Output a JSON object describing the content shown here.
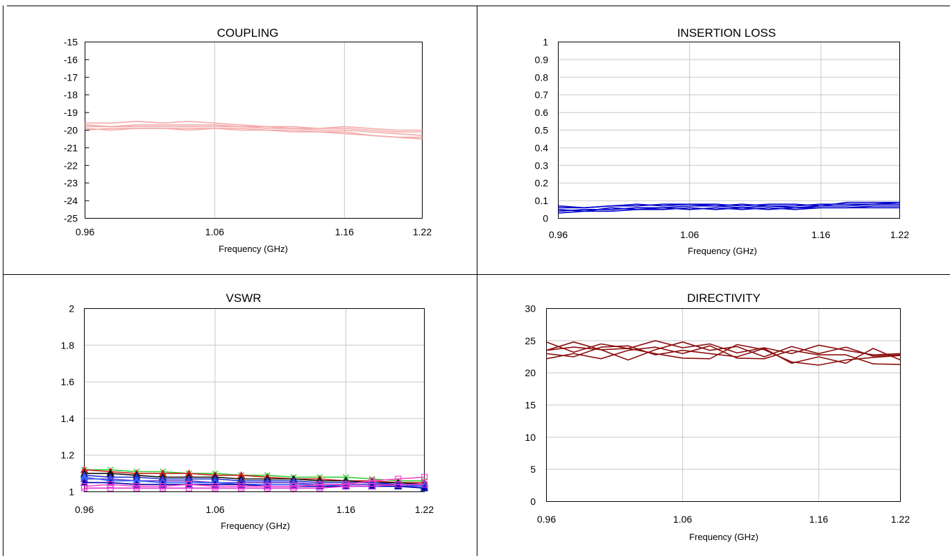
{
  "chart_data": [
    {
      "type": "line",
      "title": "COUPLING",
      "xlabel": "Frequency (GHz)",
      "ylabel": "",
      "xlim": [
        0.96,
        1.22
      ],
      "ylim": [
        -25,
        -15
      ],
      "xticks": [
        "0.96",
        "1.06",
        "1.16",
        "1.22"
      ],
      "yticks": [
        "-15",
        "-16",
        "-17",
        "-18",
        "-19",
        "-20",
        "-21",
        "-22",
        "-23",
        "-24",
        "-25"
      ],
      "grid": "vertical",
      "color": "#f4aaaa",
      "x": [
        0.96,
        0.98,
        1.0,
        1.02,
        1.04,
        1.06,
        1.08,
        1.1,
        1.12,
        1.14,
        1.16,
        1.18,
        1.2,
        1.22
      ],
      "series": [
        {
          "values": [
            -19.6,
            -19.6,
            -19.5,
            -19.6,
            -19.5,
            -19.6,
            -19.7,
            -19.8,
            -19.9,
            -20.0,
            -20.0,
            -20.1,
            -20.2,
            -20.3
          ]
        },
        {
          "values": [
            -19.8,
            -19.8,
            -19.7,
            -19.7,
            -19.7,
            -19.7,
            -19.8,
            -19.8,
            -19.8,
            -19.9,
            -19.8,
            -19.9,
            -20.0,
            -20.0
          ]
        },
        {
          "values": [
            -19.9,
            -20.0,
            -19.9,
            -19.9,
            -20.0,
            -19.9,
            -19.9,
            -20.0,
            -20.0,
            -20.1,
            -20.1,
            -20.3,
            -20.4,
            -20.5
          ]
        },
        {
          "values": [
            -19.7,
            -19.8,
            -19.8,
            -19.8,
            -19.8,
            -19.8,
            -19.8,
            -19.9,
            -19.9,
            -19.9,
            -19.9,
            -20.0,
            -20.1,
            -20.1
          ]
        },
        {
          "values": [
            -20.0,
            -19.9,
            -19.9,
            -19.9,
            -19.9,
            -19.9,
            -20.0,
            -20.0,
            -20.1,
            -20.1,
            -20.2,
            -20.3,
            -20.4,
            -20.4
          ]
        }
      ]
    },
    {
      "type": "line",
      "title": "INSERTION LOSS",
      "xlabel": "Frequency (GHz)",
      "ylabel": "",
      "xlim": [
        0.96,
        1.22
      ],
      "ylim": [
        0,
        1
      ],
      "xticks": [
        "0.96",
        "1.06",
        "1.16",
        "1.22"
      ],
      "yticks": [
        "0",
        "0.1",
        "0.2",
        "0.3",
        "0.4",
        "0.5",
        "0.6",
        "0.7",
        "0.8",
        "0.9",
        "1"
      ],
      "grid": "both",
      "color": "#0000cc",
      "x": [
        0.96,
        0.98,
        1.0,
        1.02,
        1.04,
        1.06,
        1.08,
        1.1,
        1.12,
        1.14,
        1.16,
        1.18,
        1.2,
        1.22
      ],
      "series": [
        {
          "values": [
            0.06,
            0.06,
            0.07,
            0.07,
            0.08,
            0.08,
            0.07,
            0.08,
            0.07,
            0.07,
            0.08,
            0.08,
            0.08,
            0.09
          ]
        },
        {
          "values": [
            0.04,
            0.05,
            0.05,
            0.06,
            0.06,
            0.07,
            0.07,
            0.06,
            0.07,
            0.06,
            0.07,
            0.07,
            0.08,
            0.08
          ]
        },
        {
          "values": [
            0.05,
            0.04,
            0.06,
            0.05,
            0.06,
            0.05,
            0.06,
            0.05,
            0.06,
            0.05,
            0.06,
            0.06,
            0.07,
            0.07
          ]
        },
        {
          "values": [
            0.03,
            0.04,
            0.04,
            0.05,
            0.05,
            0.06,
            0.05,
            0.06,
            0.05,
            0.06,
            0.06,
            0.06,
            0.06,
            0.06
          ]
        },
        {
          "values": [
            0.07,
            0.06,
            0.07,
            0.08,
            0.07,
            0.08,
            0.08,
            0.07,
            0.08,
            0.08,
            0.07,
            0.09,
            0.09,
            0.09
          ]
        }
      ]
    },
    {
      "type": "line",
      "title": "VSWR",
      "xlabel": "Frequency (GHz)",
      "ylabel": "",
      "xlim": [
        0.96,
        1.22
      ],
      "ylim": [
        1,
        2
      ],
      "xticks": [
        "0.96",
        "1.06",
        "1.16",
        "1.22"
      ],
      "yticks": [
        "2",
        "1.8",
        "1.6",
        "1.4",
        "1.2",
        "1"
      ],
      "grid": "both",
      "x": [
        0.96,
        0.98,
        1.0,
        1.02,
        1.04,
        1.06,
        1.08,
        1.1,
        1.12,
        1.14,
        1.16,
        1.18,
        1.2,
        1.22
      ],
      "series": [
        {
          "color": "#33cc33",
          "values": [
            1.12,
            1.12,
            1.11,
            1.11,
            1.1,
            1.1,
            1.09,
            1.09,
            1.08,
            1.08,
            1.08,
            1.07,
            1.06,
            1.06
          ]
        },
        {
          "color": "#cc2222",
          "values": [
            1.12,
            1.11,
            1.1,
            1.1,
            1.1,
            1.09,
            1.09,
            1.08,
            1.07,
            1.07,
            1.06,
            1.06,
            1.05,
            1.05
          ]
        },
        {
          "color": "#111111",
          "values": [
            1.1,
            1.1,
            1.09,
            1.08,
            1.08,
            1.08,
            1.07,
            1.07,
            1.07,
            1.06,
            1.06,
            1.05,
            1.05,
            1.04
          ]
        },
        {
          "color": "#2233cc",
          "values": [
            1.09,
            1.08,
            1.08,
            1.07,
            1.07,
            1.07,
            1.06,
            1.06,
            1.06,
            1.05,
            1.05,
            1.05,
            1.04,
            1.04
          ]
        },
        {
          "color": "#6633cc",
          "values": [
            1.07,
            1.07,
            1.06,
            1.06,
            1.06,
            1.05,
            1.05,
            1.05,
            1.05,
            1.04,
            1.04,
            1.04,
            1.04,
            1.03
          ]
        },
        {
          "color": "#3366ff",
          "values": [
            1.08,
            1.06,
            1.06,
            1.05,
            1.05,
            1.05,
            1.04,
            1.04,
            1.04,
            1.04,
            1.03,
            1.03,
            1.03,
            1.03
          ]
        },
        {
          "color": "#0000aa",
          "values": [
            1.05,
            1.05,
            1.04,
            1.04,
            1.04,
            1.04,
            1.04,
            1.03,
            1.03,
            1.03,
            1.03,
            1.03,
            1.03,
            1.02
          ]
        },
        {
          "color": "#ff44cc",
          "values": [
            1.03,
            1.04,
            1.03,
            1.03,
            1.04,
            1.03,
            1.03,
            1.03,
            1.03,
            1.04,
            1.04,
            1.06,
            1.07,
            1.08
          ]
        },
        {
          "color": "#dd33dd",
          "values": [
            1.02,
            1.02,
            1.02,
            1.02,
            1.02,
            1.02,
            1.02,
            1.02,
            1.02,
            1.02,
            1.03,
            1.03,
            1.04,
            1.04
          ]
        }
      ]
    },
    {
      "type": "line",
      "title": "DIRECTIVITY",
      "xlabel": "Frequency (GHz)",
      "ylabel": "",
      "xlim": [
        0.96,
        1.22
      ],
      "ylim": [
        0,
        30
      ],
      "xticks": [
        "0.96",
        "1.06",
        "1.16",
        "1.22"
      ],
      "yticks": [
        "0",
        "5",
        "10",
        "15",
        "20",
        "25",
        "30"
      ],
      "grid": "both",
      "color": "#8b0d0d",
      "x": [
        0.96,
        0.98,
        1.0,
        1.02,
        1.04,
        1.06,
        1.08,
        1.1,
        1.12,
        1.14,
        1.16,
        1.18,
        1.2,
        1.22
      ],
      "series": [
        {
          "values": [
            24.8,
            23.2,
            24.5,
            23.8,
            25.0,
            23.9,
            24.5,
            23.1,
            23.9,
            23.0,
            24.3,
            23.5,
            22.8,
            23.0
          ]
        },
        {
          "values": [
            23.5,
            24.8,
            23.6,
            22.0,
            23.6,
            24.8,
            23.5,
            24.1,
            22.5,
            24.1,
            23.0,
            24.0,
            22.6,
            22.8
          ]
        },
        {
          "values": [
            23.0,
            22.5,
            24.0,
            24.2,
            22.8,
            23.5,
            23.0,
            22.5,
            23.8,
            21.5,
            22.5,
            21.5,
            23.8,
            22.0
          ]
        },
        {
          "values": [
            22.2,
            23.0,
            22.2,
            23.5,
            24.0,
            23.0,
            24.2,
            22.3,
            22.2,
            23.5,
            22.8,
            22.8,
            21.4,
            21.3
          ]
        },
        {
          "values": [
            23.5,
            24.0,
            23.6,
            23.8,
            23.0,
            22.3,
            22.2,
            24.4,
            23.6,
            21.7,
            21.2,
            22.0,
            22.4,
            22.7
          ]
        }
      ]
    }
  ]
}
